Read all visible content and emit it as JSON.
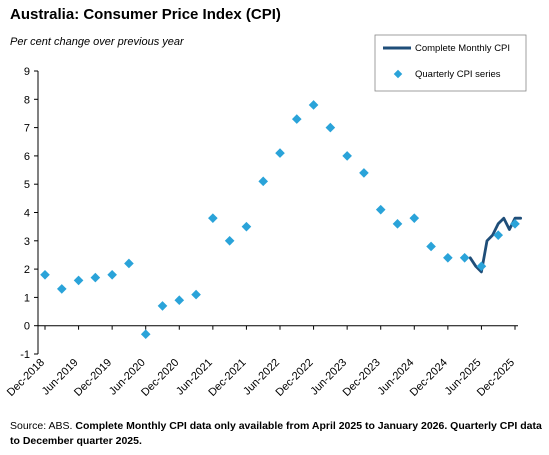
{
  "title": "Australia: Consumer Price Index (CPI)",
  "subtitle": "Per cent change over previous year",
  "source": {
    "prefix": "Source: ABS. ",
    "bold": "Complete Monthly CPI data only available from April 2025 to January 2026. Quarterly CPI data to December quarter 2025."
  },
  "colors": {
    "monthly_line": "#1f4e79",
    "quarterly_marker": "#2aa3d9",
    "axis": "#000000"
  },
  "chart_data": {
    "type": "line",
    "ylim": [
      -1,
      9
    ],
    "y_ticks": [
      "-1",
      "0",
      "1",
      "2",
      "3",
      "4",
      "5",
      "6",
      "7",
      "8",
      "9"
    ],
    "x_ticks": [
      "Dec-2018",
      "Jun-2019",
      "Dec-2019",
      "Jun-2020",
      "Dec-2020",
      "Jun-2021",
      "Dec-2021",
      "Jun-2022",
      "Dec-2022",
      "Jun-2023",
      "Dec-2023",
      "Jun-2024",
      "Dec-2024",
      "Jun-2025",
      "Dec-2025"
    ],
    "grid": false,
    "legend_position": "top-right",
    "series": [
      {
        "name": "Quarterly CPI series",
        "type": "scatter",
        "x": [
          "Dec-2018",
          "Mar-2019",
          "Jun-2019",
          "Sep-2019",
          "Dec-2019",
          "Mar-2020",
          "Jun-2020",
          "Sep-2020",
          "Dec-2020",
          "Mar-2021",
          "Jun-2021",
          "Sep-2021",
          "Dec-2021",
          "Mar-2022",
          "Jun-2022",
          "Sep-2022",
          "Dec-2022",
          "Mar-2023",
          "Jun-2023",
          "Sep-2023",
          "Dec-2023",
          "Mar-2024",
          "Jun-2024",
          "Sep-2024",
          "Dec-2024",
          "Mar-2025",
          "Jun-2025",
          "Sep-2025",
          "Dec-2025"
        ],
        "values": [
          1.8,
          1.3,
          1.6,
          1.7,
          1.8,
          2.2,
          -0.3,
          0.7,
          0.9,
          1.1,
          3.8,
          3.0,
          3.5,
          5.1,
          6.1,
          7.3,
          7.8,
          7.0,
          6.0,
          5.4,
          4.1,
          3.6,
          3.8,
          2.8,
          2.4,
          2.4,
          2.1,
          3.2,
          3.6
        ]
      },
      {
        "name": "Complete Monthly CPI",
        "type": "line",
        "x": [
          "Apr-2025",
          "May-2025",
          "Jun-2025",
          "Jul-2025",
          "Aug-2025",
          "Sep-2025",
          "Oct-2025",
          "Nov-2025",
          "Dec-2025",
          "Jan-2026"
        ],
        "values": [
          2.4,
          2.1,
          1.9,
          3.0,
          3.2,
          3.6,
          3.8,
          3.4,
          3.8,
          3.8
        ]
      }
    ]
  }
}
